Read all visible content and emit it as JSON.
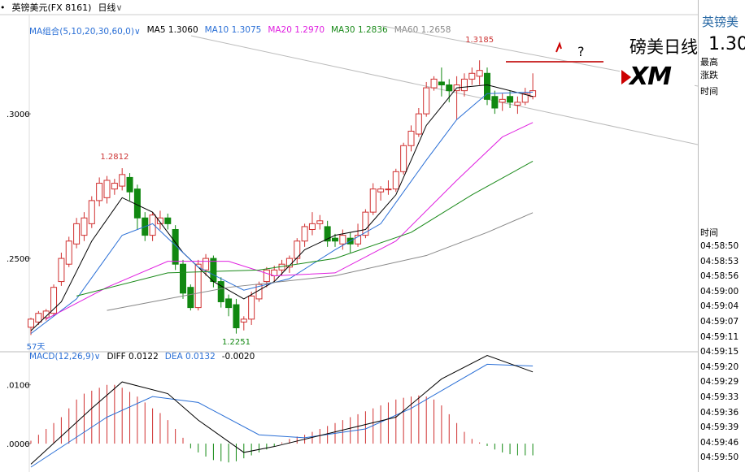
{
  "header": {
    "symbol": "英镑美元(FX 8161)",
    "period": "日线",
    "bullet": "•",
    "period_arrow": "∨"
  },
  "ma_legend": {
    "group": "MA组合(5,10,20,30,60,0)",
    "group_arrow": "∨",
    "items": [
      {
        "label": "MA5 1.3060",
        "color": "#000000"
      },
      {
        "label": "MA10 1.3075",
        "color": "#2a6fd6"
      },
      {
        "label": "MA20 1.2970",
        "color": "#e020e0"
      },
      {
        "label": "MA30 1.2836",
        "color": "#1a8a1a"
      },
      {
        "label": "MA60 1.2658",
        "color": "#888888"
      }
    ]
  },
  "macd_legend": {
    "group": "MACD(12,26,9)",
    "group_arrow": "∨",
    "items": [
      {
        "label": "DIFF 0.0122",
        "color": "#000000"
      },
      {
        "label": "DEA 0.0132",
        "color": "#2a6fd6"
      },
      {
        "label": "-0.0020",
        "color": "#000000"
      }
    ]
  },
  "annotations": {
    "overlay_title": "磅美日线",
    "question": "?",
    "logo": "XM",
    "high_label": "1.3185",
    "low_label": "1.2251",
    "mid_high_label": "1.2812",
    "days_label": "57天"
  },
  "panel": {
    "title": "英镑美",
    "price": "1.30",
    "labels": [
      "最高",
      "涨跌",
      "时间"
    ],
    "time_header": "时间",
    "times": [
      "04:58:50",
      "04:58:53",
      "04:58:56",
      "04:59:00",
      "04:59:04",
      "04:59:07",
      "04:59:11",
      "04:59:15",
      "04:59:20",
      "04:59:29",
      "04:59:33",
      "04:59:36",
      "04:59:39",
      "04:59:46",
      "04:59:50"
    ]
  },
  "chart_data": {
    "type": "candlestick",
    "ylim": [
      1.218,
      1.327
    ],
    "y_ticks": [
      ".3000",
      ".2500"
    ],
    "y_tick_values": [
      1.3,
      1.25
    ],
    "colors": {
      "up": "#d03030",
      "down": "#118811"
    },
    "candles": [
      [
        1.2262,
        1.229,
        1.2235,
        1.2295
      ],
      [
        1.228,
        1.231,
        1.227,
        1.2318
      ],
      [
        1.2295,
        1.2318,
        1.2285,
        1.2325
      ],
      [
        1.231,
        1.24,
        1.23,
        1.241
      ],
      [
        1.242,
        1.25,
        1.2405,
        1.252
      ],
      [
        1.248,
        1.256,
        1.247,
        1.2575
      ],
      [
        1.255,
        1.262,
        1.2535,
        1.264
      ],
      [
        1.258,
        1.264,
        1.256,
        1.266
      ],
      [
        1.262,
        1.27,
        1.2605,
        1.2715
      ],
      [
        1.27,
        1.276,
        1.268,
        1.278
      ],
      [
        1.271,
        1.277,
        1.269,
        1.2785
      ],
      [
        1.274,
        1.276,
        1.272,
        1.2775
      ],
      [
        1.275,
        1.279,
        1.2735,
        1.2812
      ],
      [
        1.278,
        1.273,
        1.27,
        1.2795
      ],
      [
        1.274,
        1.264,
        1.26,
        1.2755
      ],
      [
        1.264,
        1.258,
        1.256,
        1.266
      ],
      [
        1.258,
        1.265,
        1.256,
        1.266
      ],
      [
        1.262,
        1.264,
        1.26,
        1.2665
      ],
      [
        1.264,
        1.262,
        1.26,
        1.2655
      ],
      [
        1.26,
        1.248,
        1.246,
        1.2615
      ],
      [
        1.248,
        1.238,
        1.236,
        1.2495
      ],
      [
        1.24,
        1.233,
        1.232,
        1.241
      ],
      [
        1.233,
        1.248,
        1.232,
        1.2495
      ],
      [
        1.246,
        1.25,
        1.244,
        1.2515
      ],
      [
        1.25,
        1.242,
        1.24,
        1.251
      ],
      [
        1.242,
        1.235,
        1.233,
        1.2435
      ],
      [
        1.236,
        1.233,
        1.23,
        1.2375
      ],
      [
        1.234,
        1.226,
        1.224,
        1.236
      ],
      [
        1.228,
        1.229,
        1.2251,
        1.23
      ],
      [
        1.229,
        1.237,
        1.227,
        1.2385
      ],
      [
        1.236,
        1.241,
        1.235,
        1.242
      ],
      [
        1.242,
        1.246,
        1.24,
        1.247
      ],
      [
        1.244,
        1.246,
        1.242,
        1.2475
      ],
      [
        1.246,
        1.248,
        1.244,
        1.2495
      ],
      [
        1.247,
        1.25,
        1.245,
        1.251
      ],
      [
        1.25,
        1.256,
        1.248,
        1.257
      ],
      [
        1.256,
        1.261,
        1.254,
        1.262
      ],
      [
        1.26,
        1.262,
        1.258,
        1.266
      ],
      [
        1.262,
        1.263,
        1.26,
        1.265
      ],
      [
        1.261,
        1.256,
        1.254,
        1.263
      ],
      [
        1.257,
        1.256,
        1.254,
        1.2585
      ],
      [
        1.255,
        1.258,
        1.253,
        1.26
      ],
      [
        1.257,
        1.255,
        1.252,
        1.259
      ],
      [
        1.255,
        1.258,
        1.254,
        1.262
      ],
      [
        1.258,
        1.266,
        1.257,
        1.267
      ],
      [
        1.266,
        1.274,
        1.265,
        1.276
      ],
      [
        1.273,
        1.274,
        1.27,
        1.275
      ],
      [
        1.274,
        1.274,
        1.272,
        1.277
      ],
      [
        1.274,
        1.28,
        1.273,
        1.281
      ],
      [
        1.28,
        1.289,
        1.279,
        1.29
      ],
      [
        1.289,
        1.294,
        1.287,
        1.296
      ],
      [
        1.293,
        1.3,
        1.292,
        1.302
      ],
      [
        1.3,
        1.309,
        1.299,
        1.311
      ],
      [
        1.309,
        1.312,
        1.308,
        1.313
      ],
      [
        1.311,
        1.31,
        1.306,
        1.316
      ],
      [
        1.31,
        1.308,
        1.304,
        1.312
      ],
      [
        1.308,
        1.31,
        1.298,
        1.313
      ],
      [
        1.308,
        1.312,
        1.306,
        1.314
      ],
      [
        1.312,
        1.314,
        1.31,
        1.316
      ],
      [
        1.313,
        1.315,
        1.31,
        1.3185
      ],
      [
        1.314,
        1.305,
        1.303,
        1.316
      ],
      [
        1.306,
        1.302,
        1.3,
        1.308
      ],
      [
        1.304,
        1.305,
        1.301,
        1.307
      ],
      [
        1.306,
        1.304,
        1.302,
        1.308
      ],
      [
        1.303,
        1.304,
        1.3,
        1.306
      ],
      [
        1.304,
        1.307,
        1.303,
        1.309
      ],
      [
        1.306,
        1.308,
        1.305,
        1.314
      ]
    ],
    "ma": {
      "MA5": [
        [
          0,
          1.225
        ],
        [
          4,
          1.235
        ],
        [
          8,
          1.256
        ],
        [
          12,
          1.271
        ],
        [
          16,
          1.266
        ],
        [
          20,
          1.252
        ],
        [
          24,
          1.242
        ],
        [
          28,
          1.236
        ],
        [
          32,
          1.242
        ],
        [
          36,
          1.253
        ],
        [
          40,
          1.258
        ],
        [
          44,
          1.26
        ],
        [
          48,
          1.272
        ],
        [
          52,
          1.296
        ],
        [
          56,
          1.309
        ],
        [
          60,
          1.31
        ],
        [
          66,
          1.306
        ]
      ],
      "MA10": [
        [
          0,
          1.224
        ],
        [
          6,
          1.236
        ],
        [
          12,
          1.258
        ],
        [
          16,
          1.262
        ],
        [
          22,
          1.247
        ],
        [
          28,
          1.239
        ],
        [
          34,
          1.243
        ],
        [
          40,
          1.253
        ],
        [
          46,
          1.262
        ],
        [
          52,
          1.284
        ],
        [
          56,
          1.298
        ],
        [
          60,
          1.307
        ],
        [
          66,
          1.3075
        ]
      ],
      "MA20": [
        [
          2,
          1.229
        ],
        [
          10,
          1.24
        ],
        [
          18,
          1.249
        ],
        [
          26,
          1.249
        ],
        [
          32,
          1.244
        ],
        [
          40,
          1.245
        ],
        [
          48,
          1.256
        ],
        [
          56,
          1.277
        ],
        [
          62,
          1.292
        ],
        [
          66,
          1.297
        ]
      ],
      "MA30": [
        [
          6,
          1.237
        ],
        [
          18,
          1.245
        ],
        [
          30,
          1.246
        ],
        [
          40,
          1.25
        ],
        [
          50,
          1.259
        ],
        [
          58,
          1.272
        ],
        [
          66,
          1.2836
        ]
      ],
      "MA60": [
        [
          10,
          1.232
        ],
        [
          26,
          1.24
        ],
        [
          40,
          1.244
        ],
        [
          52,
          1.251
        ],
        [
          60,
          1.259
        ],
        [
          66,
          1.2658
        ]
      ]
    },
    "macd": {
      "ylim": [
        -0.004,
        0.013
      ],
      "y_ticks": [
        ".0100",
        ".0000"
      ],
      "y_tick_values": [
        0.01,
        0.0
      ],
      "diff": [
        [
          0,
          -0.0035
        ],
        [
          8,
          0.006
        ],
        [
          12,
          0.0105
        ],
        [
          18,
          0.0085
        ],
        [
          22,
          0.004
        ],
        [
          28,
          -0.0015
        ],
        [
          32,
          -0.0005
        ],
        [
          40,
          0.002
        ],
        [
          48,
          0.0045
        ],
        [
          54,
          0.011
        ],
        [
          60,
          0.015
        ],
        [
          66,
          0.0122
        ]
      ],
      "dea": [
        [
          0,
          -0.004
        ],
        [
          10,
          0.0045
        ],
        [
          16,
          0.008
        ],
        [
          22,
          0.007
        ],
        [
          30,
          0.0015
        ],
        [
          36,
          0.001
        ],
        [
          44,
          0.0025
        ],
        [
          50,
          0.006
        ],
        [
          56,
          0.0105
        ],
        [
          60,
          0.0135
        ],
        [
          66,
          0.0132
        ]
      ],
      "hist": [
        0.0005,
        0.0015,
        0.0025,
        0.0035,
        0.0045,
        0.006,
        0.0075,
        0.0085,
        0.009,
        0.0095,
        0.01,
        0.01,
        0.0095,
        0.0088,
        0.008,
        0.007,
        0.006,
        0.0052,
        0.004,
        0.0025,
        0.001,
        -0.0008,
        -0.0015,
        -0.0022,
        -0.0028,
        -0.003,
        -0.0032,
        -0.003,
        -0.0025,
        -0.002,
        -0.0015,
        -0.001,
        -0.0005,
        0.0002,
        0.0008,
        0.0012,
        0.0015,
        0.002,
        0.0025,
        0.003,
        0.0035,
        0.004,
        0.0045,
        0.005,
        0.0055,
        0.006,
        0.0065,
        0.007,
        0.0075,
        0.0078,
        0.008,
        0.0082,
        0.008,
        0.0075,
        0.0065,
        0.005,
        0.0035,
        0.002,
        0.0008,
        0.0002,
        -0.0004,
        -0.001,
        -0.0015,
        -0.0018,
        -0.002,
        -0.002,
        -0.002
      ]
    }
  }
}
